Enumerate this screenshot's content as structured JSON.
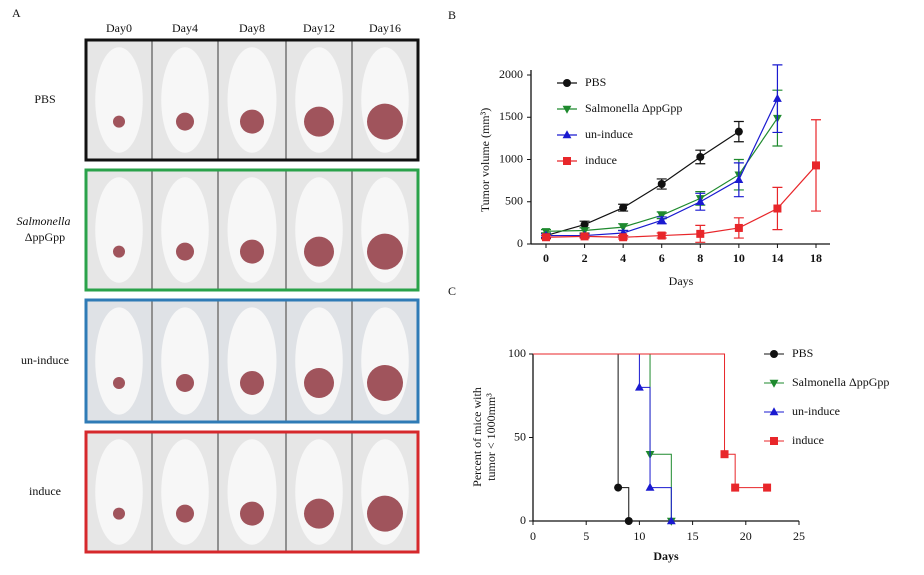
{
  "panel_labels": [
    "A",
    "B",
    "C"
  ],
  "photo_grid": {
    "columns": [
      "Day0",
      "Day4",
      "Day8",
      "Day12",
      "Day16"
    ],
    "rows": [
      {
        "label": "PBS",
        "color": "#111111"
      },
      {
        "label": "Salmonella ΔppGpp",
        "color": "#2aa24a"
      },
      {
        "label": "un-induce",
        "color": "#2f7bb6"
      },
      {
        "label": "induce",
        "color": "#d6282c"
      }
    ]
  },
  "chart_data": [
    {
      "type": "line",
      "categories": [
        "0",
        "2",
        "4",
        "6",
        "8",
        "10",
        "14",
        "18"
      ],
      "ylabel": "Tumor volume (mm³)",
      "xlabel": "Days",
      "ylim": [
        0,
        2000
      ],
      "yticks": [
        0,
        500,
        1000,
        1500,
        2000
      ],
      "series": [
        {
          "name": "PBS",
          "color": "#111111",
          "marker": "circle",
          "values": [
            100,
            230,
            430,
            710,
            1030,
            1330,
            null,
            null
          ],
          "errors": [
            30,
            40,
            40,
            60,
            80,
            120,
            null,
            null
          ]
        },
        {
          "name": "Salmonella ΔppGpp",
          "color": "#1e8a2e",
          "marker": "triangle-down",
          "values": [
            150,
            160,
            200,
            340,
            540,
            820,
            1490,
            null
          ],
          "errors": [
            20,
            30,
            40,
            40,
            80,
            180,
            330,
            null
          ]
        },
        {
          "name": "un-induce",
          "color": "#1a1ad0",
          "marker": "triangle-up",
          "values": [
            100,
            100,
            130,
            280,
            500,
            760,
            1720,
            null
          ],
          "errors": [
            20,
            20,
            30,
            40,
            100,
            200,
            400,
            null
          ]
        },
        {
          "name": "induce",
          "color": "#e8262a",
          "marker": "square",
          "values": [
            80,
            90,
            80,
            100,
            120,
            190,
            420,
            930
          ],
          "errors": [
            20,
            20,
            20,
            30,
            100,
            120,
            250,
            540
          ]
        }
      ]
    },
    {
      "type": "step",
      "ylabel": [
        "Percent of mice with",
        "tumor < 1000mm³"
      ],
      "xlabel": "Days",
      "xlim": [
        0,
        25
      ],
      "xticks": [
        0,
        5,
        10,
        15,
        20,
        25
      ],
      "ylim": [
        0,
        100
      ],
      "yticks": [
        0,
        50,
        100
      ],
      "series": [
        {
          "name": "PBS",
          "color": "#111111",
          "marker": "circle",
          "x": [
            0,
            8,
            9
          ],
          "values": [
            100,
            20,
            0
          ]
        },
        {
          "name": "Salmonella ΔppGpp",
          "color": "#1e8a2e",
          "marker": "triangle-down",
          "x": [
            0,
            11,
            13
          ],
          "values": [
            100,
            40,
            0
          ]
        },
        {
          "name": "un-induce",
          "color": "#1a1ad0",
          "marker": "triangle-up",
          "x": [
            0,
            10,
            11,
            13
          ],
          "values": [
            100,
            80,
            20,
            0
          ]
        },
        {
          "name": "induce",
          "color": "#e8262a",
          "marker": "square",
          "x": [
            0,
            18,
            19,
            22
          ],
          "values": [
            100,
            40,
            20,
            20
          ]
        }
      ]
    }
  ]
}
